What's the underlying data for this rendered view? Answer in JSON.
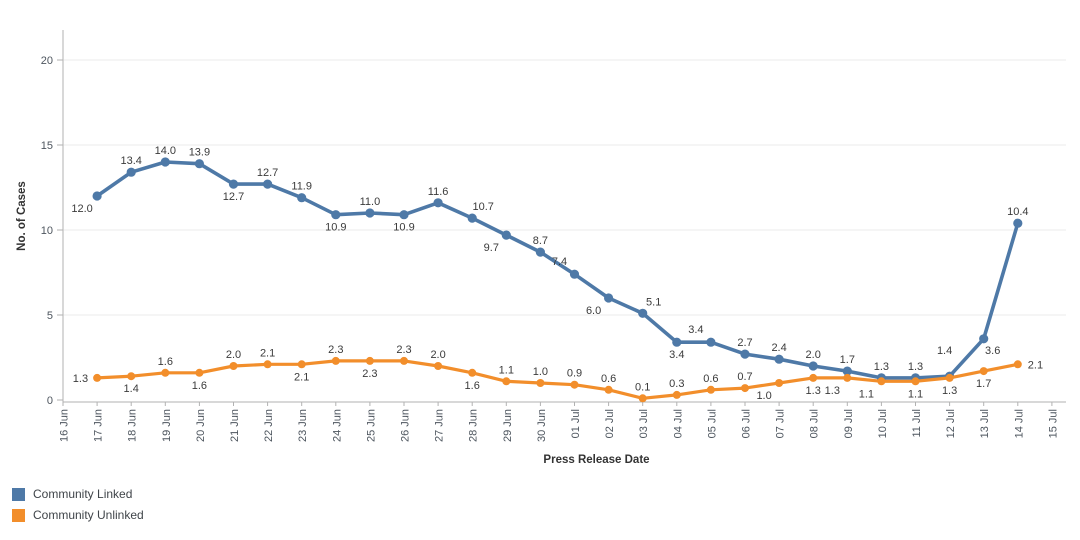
{
  "chart_data": {
    "type": "line",
    "title": "",
    "xlabel": "Press Release Date",
    "ylabel": "No. of Cases",
    "yticks": [
      0,
      5,
      10,
      15,
      20
    ],
    "ylim": [
      -0.15,
      21.9
    ],
    "grid": "horizontal-only",
    "legend_position": "bottom-left",
    "categories": [
      "16 Jun",
      "17 Jun",
      "18 Jun",
      "19 Jun",
      "20 Jun",
      "21 Jun",
      "22 Jun",
      "23 Jun",
      "24 Jun",
      "25 Jun",
      "26 Jun",
      "27 Jun",
      "28 Jun",
      "29 Jun",
      "30 Jun",
      "01 Jul",
      "02 Jul",
      "03 Jul",
      "04 Jul",
      "05 Jul",
      "06 Jul",
      "07 Jul",
      "08 Jul",
      "09 Jul",
      "10 Jul",
      "11 Jul",
      "12 Jul",
      "13 Jul",
      "14 Jul",
      "15 Jul"
    ],
    "series": [
      {
        "name": "Community Linked",
        "color": "#4e79a7",
        "start_index": 1,
        "values": [
          12.0,
          13.4,
          14.0,
          13.9,
          12.7,
          12.7,
          11.9,
          10.9,
          11.0,
          10.9,
          11.6,
          10.7,
          9.7,
          8.7,
          7.4,
          6.0,
          5.1,
          3.4,
          3.4,
          2.7,
          2.4,
          2.0,
          1.7,
          1.3,
          1.3,
          1.4,
          3.6,
          10.4
        ],
        "label_pos": [
          "below-left",
          "above",
          "above",
          "above",
          "below",
          "above",
          "above",
          "below",
          "above",
          "below",
          "above",
          "above-right",
          "below-left",
          "above",
          "above-left",
          "below-left",
          "above-right",
          "below",
          "above-left",
          "above",
          "above",
          "above",
          "above",
          "above",
          "above",
          "above-high",
          "below-right",
          "above"
        ]
      },
      {
        "name": "Community Unlinked",
        "color": "#f28e2b",
        "start_index": 1,
        "values": [
          1.3,
          1.4,
          1.6,
          1.6,
          2.0,
          2.1,
          2.1,
          2.3,
          2.3,
          2.3,
          2.0,
          1.6,
          1.1,
          1.0,
          0.9,
          0.6,
          0.1,
          0.3,
          0.6,
          0.7,
          1.0,
          1.3,
          1.3,
          1.1,
          1.1,
          1.3,
          1.7,
          2.1
        ],
        "label_pos": [
          "left",
          "below",
          "above",
          "below",
          "above",
          "above",
          "below",
          "above",
          "below",
          "above",
          "above",
          "below",
          "above",
          "above",
          "above",
          "above",
          "above",
          "above",
          "above",
          "above",
          "below-left",
          "below",
          "below-left",
          "below-left",
          "below",
          "below",
          "below",
          "right"
        ]
      }
    ]
  },
  "legend": {
    "items": [
      {
        "label": "Community Linked",
        "color": "#4e79a7"
      },
      {
        "label": "Community Unlinked",
        "color": "#f28e2b"
      }
    ]
  }
}
